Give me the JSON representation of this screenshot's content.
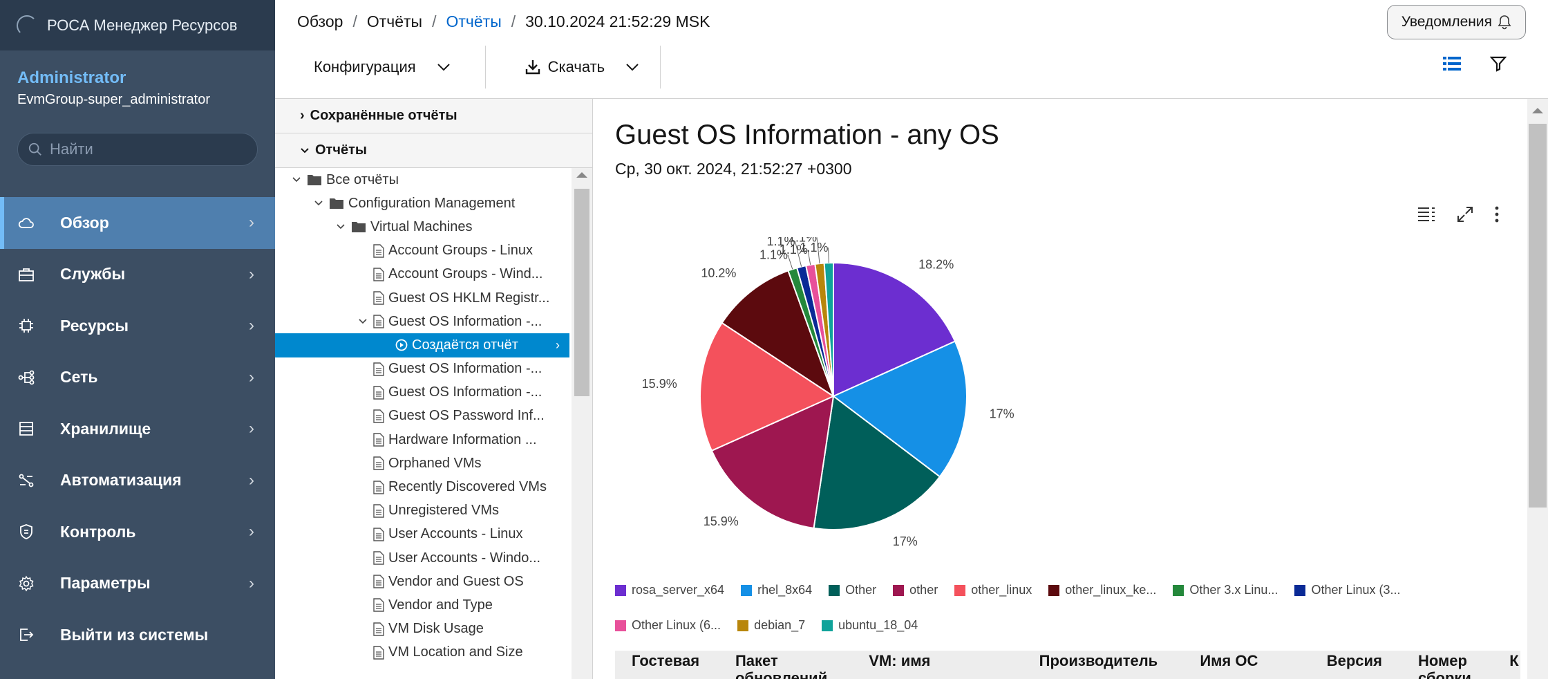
{
  "brand": "РОСА Менеджер Ресурсов",
  "user": {
    "name": "Administrator",
    "group": "EvmGroup-super_administrator"
  },
  "search": {
    "placeholder": "Найти"
  },
  "menu": [
    {
      "label": "Обзор",
      "icon": "cloud-icon",
      "active": true
    },
    {
      "label": "Службы",
      "icon": "briefcase-icon"
    },
    {
      "label": "Ресурсы",
      "icon": "chip-icon"
    },
    {
      "label": "Сеть",
      "icon": "network-icon"
    },
    {
      "label": "Хранилище",
      "icon": "storage-icon"
    },
    {
      "label": "Автоматизация",
      "icon": "automation-icon"
    },
    {
      "label": "Контроль",
      "icon": "shield-icon"
    },
    {
      "label": "Параметры",
      "icon": "gear-icon"
    },
    {
      "label": "Выйти из системы",
      "icon": "logout-icon"
    }
  ],
  "breadcrumb": {
    "items": [
      "Обзор",
      "Отчёты",
      "Отчёты",
      "30.10.2024 21:52:29 MSK"
    ]
  },
  "notifications_label": "Уведомления",
  "toolbar": {
    "config_label": "Конфигурация",
    "download_label": "Скачать"
  },
  "accordion": {
    "saved": "Сохранённые отчёты",
    "reports": "Отчёты"
  },
  "tree": [
    {
      "label": "Все отчёты",
      "depth": 0,
      "type": "folder",
      "expanded": true
    },
    {
      "label": "Configuration Management",
      "depth": 1,
      "type": "folder",
      "expanded": true
    },
    {
      "label": "Virtual Machines",
      "depth": 2,
      "type": "folder",
      "expanded": true
    },
    {
      "label": "Account Groups - Linux",
      "depth": 3,
      "type": "doc"
    },
    {
      "label": "Account Groups - Wind...",
      "depth": 3,
      "type": "doc"
    },
    {
      "label": "Guest OS HKLM Registr...",
      "depth": 3,
      "type": "doc"
    },
    {
      "label": "Guest OS Information -...",
      "depth": 3,
      "type": "doc",
      "expanded": true
    },
    {
      "label": "Создаётся отчёт",
      "depth": 4,
      "type": "run",
      "selected": true
    },
    {
      "label": "Guest OS Information -...",
      "depth": 3,
      "type": "doc"
    },
    {
      "label": "Guest OS Information -...",
      "depth": 3,
      "type": "doc"
    },
    {
      "label": "Guest OS Password Inf...",
      "depth": 3,
      "type": "doc"
    },
    {
      "label": "Hardware Information ...",
      "depth": 3,
      "type": "doc"
    },
    {
      "label": "Orphaned VMs",
      "depth": 3,
      "type": "doc"
    },
    {
      "label": "Recently Discovered VMs",
      "depth": 3,
      "type": "doc"
    },
    {
      "label": "Unregistered VMs",
      "depth": 3,
      "type": "doc"
    },
    {
      "label": "User Accounts - Linux",
      "depth": 3,
      "type": "doc"
    },
    {
      "label": "User Accounts - Windo...",
      "depth": 3,
      "type": "doc"
    },
    {
      "label": "Vendor and Guest OS",
      "depth": 3,
      "type": "doc"
    },
    {
      "label": "Vendor and Type",
      "depth": 3,
      "type": "doc"
    },
    {
      "label": "VM Disk Usage",
      "depth": 3,
      "type": "doc"
    },
    {
      "label": "VM Location and Size",
      "depth": 3,
      "type": "doc"
    }
  ],
  "report": {
    "title": "Guest OS Information - any OS",
    "date": "Ср, 30 окт. 2024, 21:52:27 +0300"
  },
  "chart_data": {
    "type": "pie",
    "title": "",
    "slices": [
      {
        "name": "rosa_server_x64",
        "value": 18.2,
        "color": "#6c2ed0",
        "label": "18.2%"
      },
      {
        "name": "rhel_8x64",
        "value": 17.0,
        "color": "#1590e6",
        "label": "17%"
      },
      {
        "name": "Other",
        "value": 17.0,
        "color": "#005f5a",
        "label": "17%"
      },
      {
        "name": "other",
        "value": 15.9,
        "color": "#9e1750",
        "label": "15.9%"
      },
      {
        "name": "other_linux",
        "value": 15.9,
        "color": "#f4515c",
        "label": "15.9%"
      },
      {
        "name": "other_linux_ke...",
        "value": 10.2,
        "color": "#5c0a0e",
        "label": "10.2%"
      },
      {
        "name": "Other 3.x Linu...",
        "value": 1.1,
        "color": "#24883b",
        "label": "1.1%"
      },
      {
        "name": "Other Linux (3...",
        "value": 1.1,
        "color": "#0a2a96",
        "label": "1.1%"
      },
      {
        "name": "Other Linux (6...",
        "value": 1.1,
        "color": "#e8509a",
        "label": "1.1%"
      },
      {
        "name": "debian_7",
        "value": 1.1,
        "color": "#b8860b",
        "label": "1.1%"
      },
      {
        "name": "ubuntu_18_04",
        "value": 1.1,
        "color": "#10a39a",
        "label": "1.1%"
      }
    ],
    "legend_position": "bottom"
  },
  "table": {
    "headers": [
      "Гостевая",
      "Пакет обновлений",
      "VM: имя",
      "Производитель",
      "Имя ОС",
      "Версия",
      "Номер сборки",
      "К"
    ]
  }
}
